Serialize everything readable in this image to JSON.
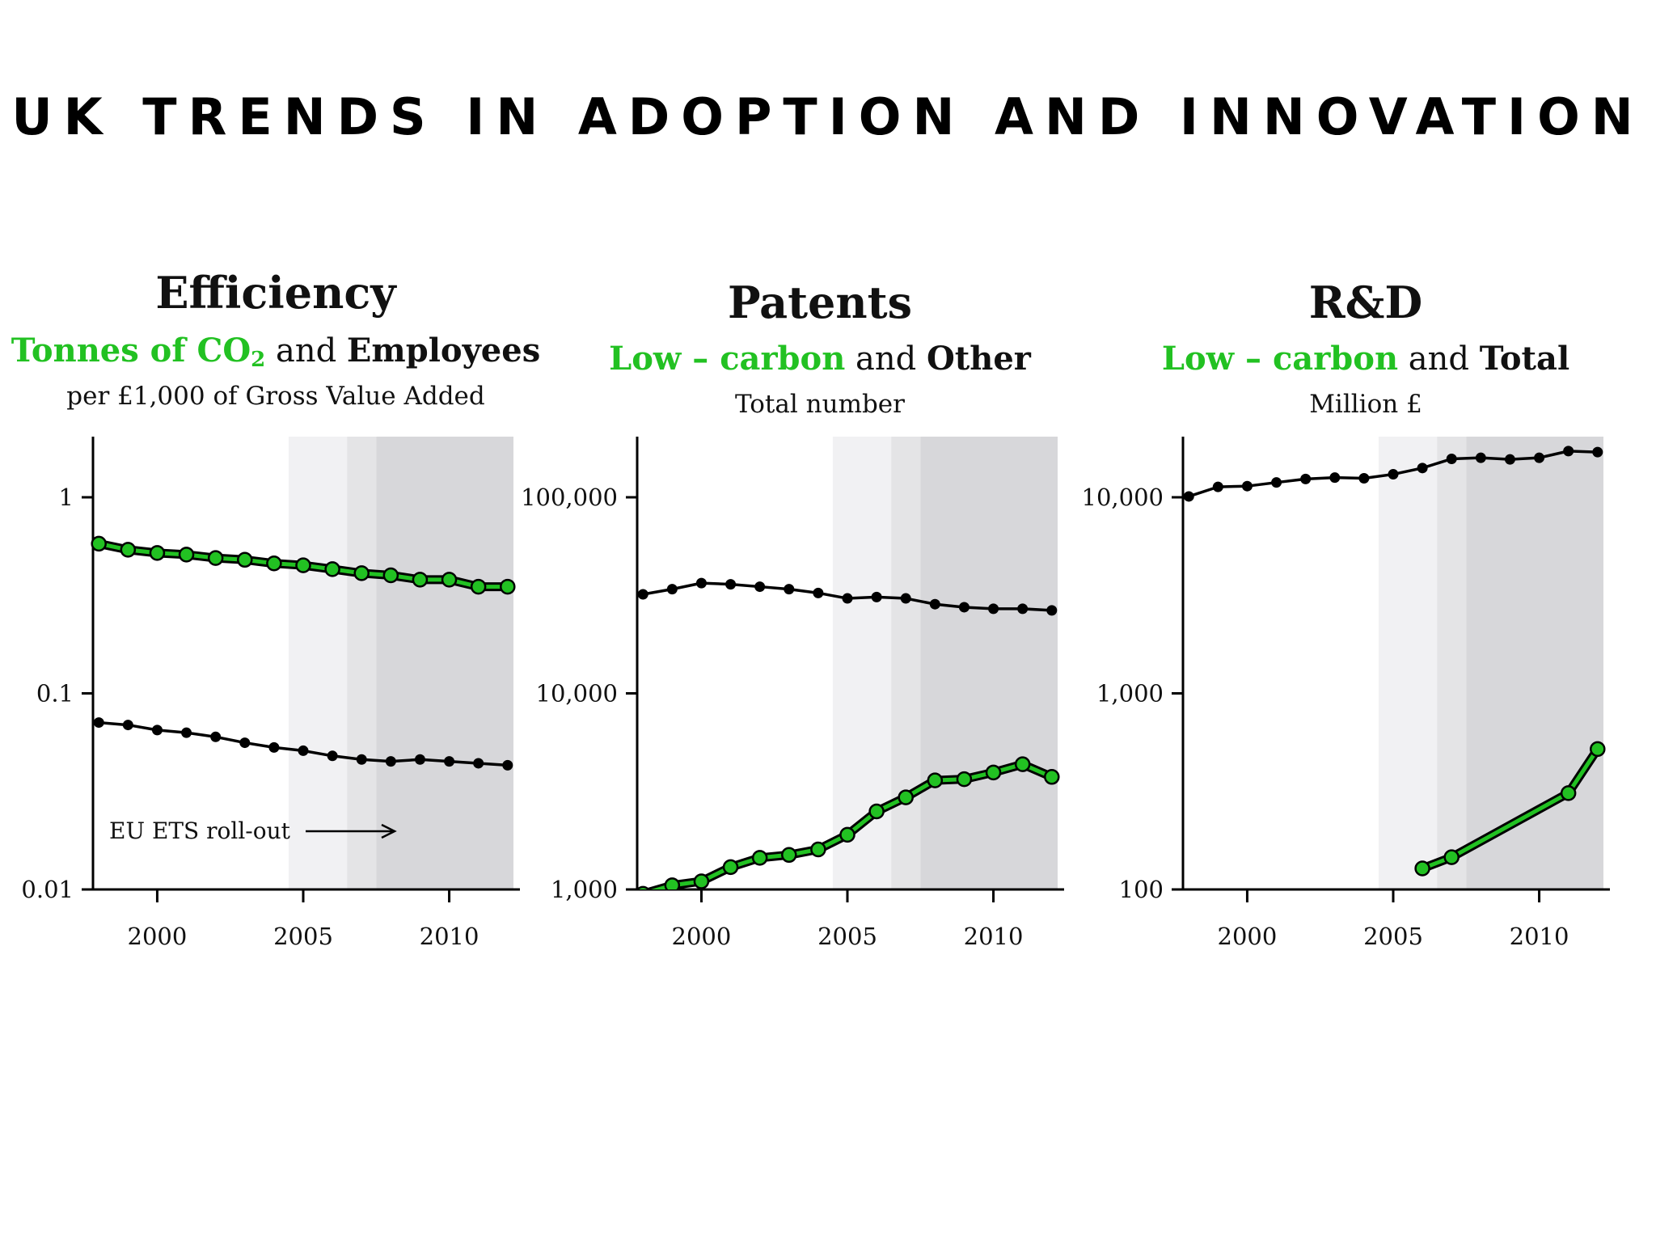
{
  "title": "UK TRENDS IN ADOPTION AND INNOVATION",
  "colors": {
    "green": "#22c122",
    "black": "#000000",
    "shade_light": "#f1f1f3",
    "shade_mid": "#e4e4e6",
    "shade_dark": "#d7d7da"
  },
  "panels": [
    {
      "title": "Efficiency",
      "subtitle_green": "Tonnes of CO",
      "subtitle_green_sub": "2",
      "subtitle_and": "and",
      "subtitle_black": "Employees",
      "unit": "per £1,000 of Gross Value Added",
      "annotation": "EU ETS roll-out"
    },
    {
      "title": "Patents",
      "subtitle_green": "Low – carbon",
      "subtitle_and": "and",
      "subtitle_black": "Other",
      "unit": "Total number"
    },
    {
      "title": "R&D",
      "subtitle_green": "Low – carbon",
      "subtitle_and": "and",
      "subtitle_black": "Total",
      "unit": "Million £"
    }
  ],
  "chart_data": [
    {
      "type": "line",
      "title": "Efficiency",
      "scale": "log",
      "ylim": [
        0.01,
        2
      ],
      "xlim": [
        1997.8,
        2012.2
      ],
      "yticks": [
        1,
        0.1,
        0.01
      ],
      "ytick_labels": [
        "1",
        "0.1",
        "0.01"
      ],
      "xticks": [
        2000,
        2005,
        2010
      ],
      "xtick_labels": [
        "2000",
        "2005",
        "2010"
      ],
      "shaded_periods": [
        [
          2004.5,
          2006.5
        ],
        [
          2006.5,
          2007.5
        ],
        [
          2007.5,
          2012.2
        ]
      ],
      "annotation": "EU ETS roll-out",
      "series": [
        {
          "name": "Tonnes of CO2",
          "color": "green",
          "x": [
            1998,
            1999,
            2000,
            2001,
            2002,
            2003,
            2004,
            2005,
            2006,
            2007,
            2008,
            2009,
            2010,
            2011,
            2012
          ],
          "values": [
            0.58,
            0.54,
            0.52,
            0.51,
            0.49,
            0.48,
            0.46,
            0.45,
            0.43,
            0.41,
            0.4,
            0.38,
            0.38,
            0.35,
            0.35
          ]
        },
        {
          "name": "Employees",
          "color": "black",
          "x": [
            1998,
            1999,
            2000,
            2001,
            2002,
            2003,
            2004,
            2005,
            2006,
            2007,
            2008,
            2009,
            2010,
            2011,
            2012
          ],
          "values": [
            0.071,
            0.069,
            0.065,
            0.063,
            0.06,
            0.056,
            0.053,
            0.051,
            0.048,
            0.046,
            0.045,
            0.046,
            0.045,
            0.044,
            0.043
          ]
        }
      ]
    },
    {
      "type": "line",
      "title": "Patents",
      "scale": "log",
      "ylim": [
        1000,
        200000
      ],
      "xlim": [
        1997.8,
        2012.2
      ],
      "yticks": [
        100000,
        10000,
        1000
      ],
      "ytick_labels": [
        "100,000",
        "10,000",
        "1,000"
      ],
      "xticks": [
        2000,
        2005,
        2010
      ],
      "xtick_labels": [
        "2000",
        "2005",
        "2010"
      ],
      "shaded_periods": [
        [
          2004.5,
          2006.5
        ],
        [
          2006.5,
          2007.5
        ],
        [
          2007.5,
          2012.2
        ]
      ],
      "series": [
        {
          "name": "Low – carbon",
          "color": "green",
          "x": [
            1998,
            1999,
            2000,
            2001,
            2002,
            2003,
            2004,
            2005,
            2006,
            2007,
            2008,
            2009,
            2010,
            2011,
            2012
          ],
          "values": [
            950,
            1050,
            1100,
            1300,
            1450,
            1500,
            1600,
            1900,
            2500,
            2950,
            3600,
            3650,
            3950,
            4350,
            3750
          ]
        },
        {
          "name": "Other",
          "color": "black",
          "x": [
            1998,
            1999,
            2000,
            2001,
            2002,
            2003,
            2004,
            2005,
            2006,
            2007,
            2008,
            2009,
            2010,
            2011,
            2012
          ],
          "values": [
            32000,
            34000,
            36500,
            36000,
            35000,
            34000,
            32500,
            30500,
            31000,
            30500,
            28500,
            27500,
            27000,
            27000,
            26500
          ]
        }
      ]
    },
    {
      "type": "line",
      "title": "R&D",
      "scale": "log",
      "ylim": [
        100,
        20000
      ],
      "xlim": [
        1997.8,
        2012.2
      ],
      "yticks": [
        10000,
        1000,
        100
      ],
      "ytick_labels": [
        "10,000",
        "1,000",
        "100"
      ],
      "xticks": [
        2000,
        2005,
        2010
      ],
      "xtick_labels": [
        "2000",
        "2005",
        "2010"
      ],
      "shaded_periods": [
        [
          2004.5,
          2006.5
        ],
        [
          2006.5,
          2007.5
        ],
        [
          2007.5,
          2012.2
        ]
      ],
      "series": [
        {
          "name": "Low – carbon",
          "color": "green",
          "x": [
            2006,
            2007,
            2011,
            2012
          ],
          "values": [
            128,
            146,
            310,
            520
          ]
        },
        {
          "name": "Total",
          "color": "black",
          "x": [
            1998,
            1999,
            2000,
            2001,
            2002,
            2003,
            2004,
            2005,
            2006,
            2007,
            2008,
            2009,
            2010,
            2011,
            2012
          ],
          "values": [
            10100,
            11300,
            11400,
            11900,
            12400,
            12600,
            12500,
            13100,
            14100,
            15700,
            15900,
            15600,
            15900,
            17200,
            17000
          ]
        }
      ]
    }
  ]
}
